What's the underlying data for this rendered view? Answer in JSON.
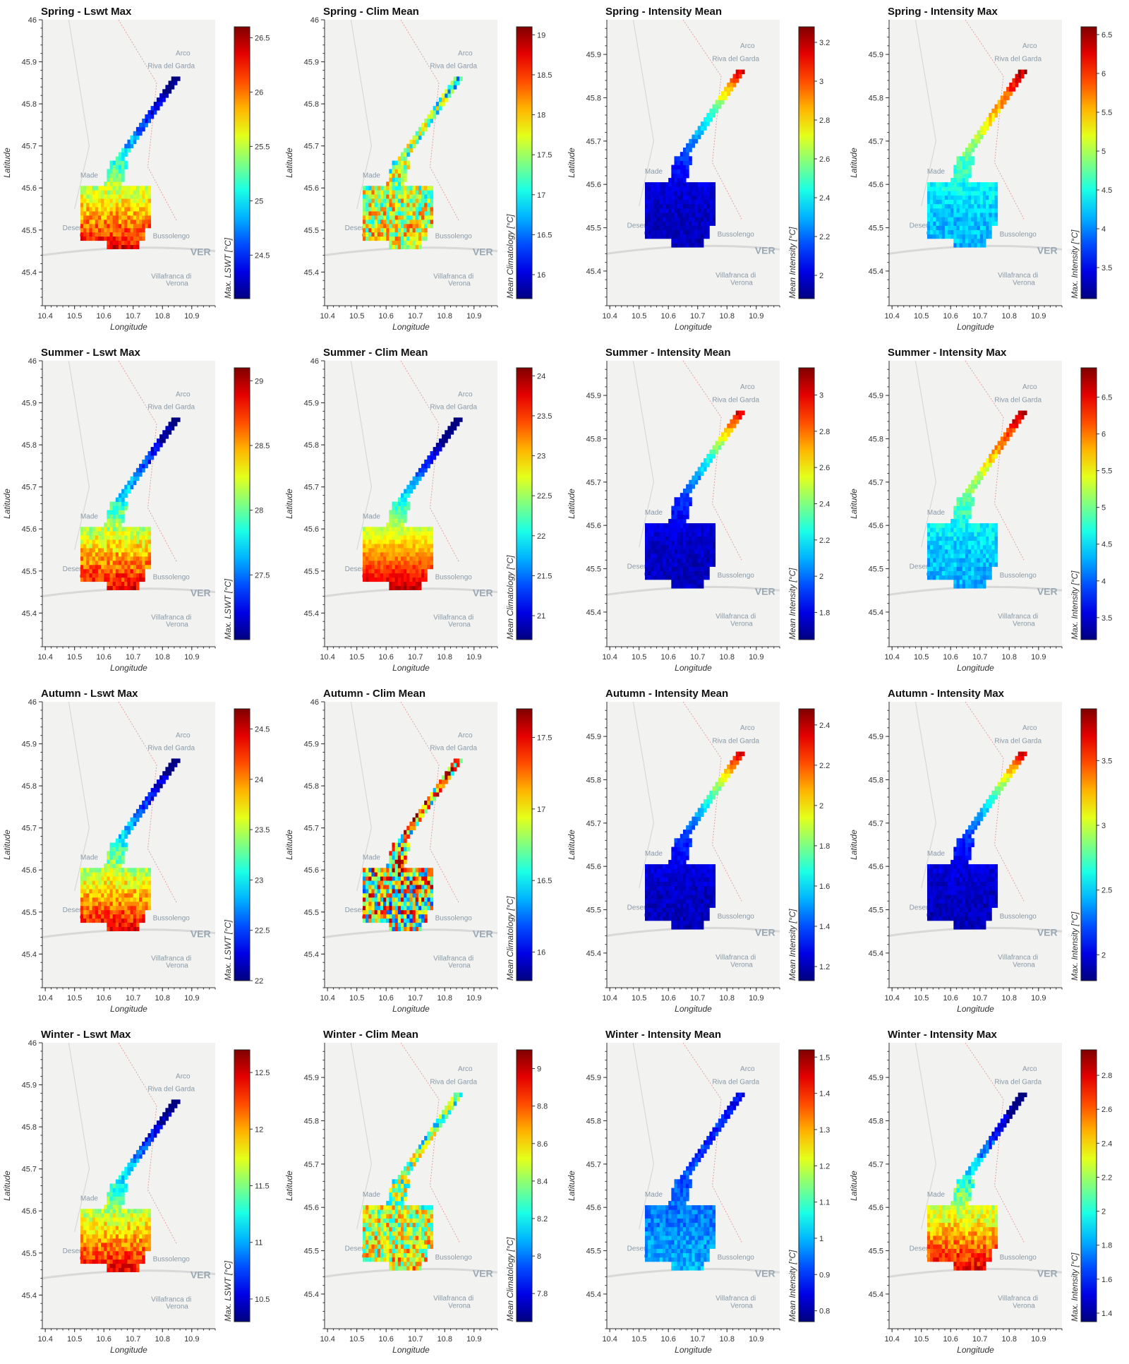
{
  "chart_data": [
    {
      "type": "heatmap",
      "title": "Spring - Lswt Max",
      "xlabel": "Longitude",
      "ylabel": "Latitude",
      "colorbar_label": "Max. LSWT [°C]",
      "colorbar_ticks": [
        "24.5",
        "25",
        "25.5",
        "26",
        "26.5"
      ],
      "clim": [
        24.1,
        26.6
      ],
      "pattern": "south-hot",
      "xticks": [
        "10.4",
        "10.5",
        "10.6",
        "10.7",
        "10.8",
        "10.9"
      ],
      "yticks": [
        "45.4",
        "45.5",
        "45.6",
        "45.7",
        "45.8",
        "45.9",
        "46"
      ],
      "xlim": [
        10.39,
        10.98
      ],
      "ylim": [
        45.32,
        46.0
      ]
    },
    {
      "type": "heatmap",
      "title": "Spring - Clim Mean",
      "xlabel": "Longitude",
      "ylabel": "Latitude",
      "colorbar_label": "Mean Climatology [°C]",
      "colorbar_ticks": [
        "16",
        "16.5",
        "17",
        "17.5",
        "18",
        "18.5",
        "19"
      ],
      "clim": [
        15.7,
        19.1
      ],
      "pattern": "noisy-mid",
      "xticks": [
        "10.4",
        "10.5",
        "10.6",
        "10.7",
        "10.8",
        "10.9"
      ],
      "yticks": [
        "45.4",
        "45.5",
        "45.6",
        "45.7",
        "45.8",
        "45.9",
        "46"
      ],
      "xlim": [
        10.39,
        10.98
      ],
      "ylim": [
        45.32,
        46.0
      ]
    },
    {
      "type": "heatmap",
      "title": "Spring - Intensity Mean",
      "xlabel": "Longitude",
      "ylabel": "Latitude",
      "colorbar_label": "Mean Intensity [°C]",
      "colorbar_ticks": [
        "2",
        "2.2",
        "2.4",
        "2.6",
        "2.8",
        "3",
        "3.2"
      ],
      "clim": [
        1.88,
        3.28
      ],
      "pattern": "north-hot",
      "xticks": [
        "10.4",
        "10.5",
        "10.6",
        "10.7",
        "10.8",
        "10.9"
      ],
      "yticks": [
        "45.4",
        "45.5",
        "45.6",
        "45.7",
        "45.8",
        "45.9"
      ],
      "xlim": [
        10.39,
        10.98
      ],
      "ylim": [
        45.32,
        45.98
      ]
    },
    {
      "type": "heatmap",
      "title": "Spring - Intensity Max",
      "xlabel": "Longitude",
      "ylabel": "Latitude",
      "colorbar_label": "Max. Intensity [°C]",
      "colorbar_ticks": [
        "3.5",
        "4",
        "4.5",
        "5",
        "5.5",
        "6",
        "6.5"
      ],
      "clim": [
        3.1,
        6.6
      ],
      "pattern": "north-hot-soft",
      "xticks": [
        "10.4",
        "10.5",
        "10.6",
        "10.7",
        "10.8",
        "10.9"
      ],
      "yticks": [
        "45.4",
        "45.5",
        "45.6",
        "45.7",
        "45.8",
        "45.9"
      ],
      "xlim": [
        10.39,
        10.98
      ],
      "ylim": [
        45.32,
        45.98
      ]
    },
    {
      "type": "heatmap",
      "title": "Summer - Lswt Max",
      "xlabel": "Longitude",
      "ylabel": "Latitude",
      "colorbar_label": "Max. LSWT [°C]",
      "colorbar_ticks": [
        "27.5",
        "28",
        "28.5",
        "29"
      ],
      "clim": [
        27.0,
        29.1
      ],
      "pattern": "south-hot",
      "xticks": [
        "10.4",
        "10.5",
        "10.6",
        "10.7",
        "10.8",
        "10.9"
      ],
      "yticks": [
        "45.4",
        "45.5",
        "45.6",
        "45.7",
        "45.8",
        "45.9",
        "46"
      ],
      "xlim": [
        10.39,
        10.98
      ],
      "ylim": [
        45.32,
        46.0
      ]
    },
    {
      "type": "heatmap",
      "title": "Summer - Clim Mean",
      "xlabel": "Longitude",
      "ylabel": "Latitude",
      "colorbar_label": "Mean Climatology [°C]",
      "colorbar_ticks": [
        "21",
        "21.5",
        "22",
        "22.5",
        "23",
        "23.5",
        "24"
      ],
      "clim": [
        20.7,
        24.1
      ],
      "pattern": "south-hot-strong",
      "xticks": [
        "10.4",
        "10.5",
        "10.6",
        "10.7",
        "10.8",
        "10.9"
      ],
      "yticks": [
        "45.4",
        "45.5",
        "45.6",
        "45.7",
        "45.8",
        "45.9",
        "46"
      ],
      "xlim": [
        10.39,
        10.98
      ],
      "ylim": [
        45.32,
        46.0
      ]
    },
    {
      "type": "heatmap",
      "title": "Summer - Intensity Mean",
      "xlabel": "Longitude",
      "ylabel": "Latitude",
      "colorbar_label": "Mean Intensity [°C]",
      "colorbar_ticks": [
        "1.8",
        "2",
        "2.2",
        "2.4",
        "2.6",
        "2.8",
        "3"
      ],
      "clim": [
        1.65,
        3.15
      ],
      "pattern": "north-hot",
      "xticks": [
        "10.4",
        "10.5",
        "10.6",
        "10.7",
        "10.8",
        "10.9"
      ],
      "yticks": [
        "45.4",
        "45.5",
        "45.6",
        "45.7",
        "45.8",
        "45.9"
      ],
      "xlim": [
        10.39,
        10.98
      ],
      "ylim": [
        45.32,
        45.98
      ]
    },
    {
      "type": "heatmap",
      "title": "Summer - Intensity Max",
      "xlabel": "Longitude",
      "ylabel": "Latitude",
      "colorbar_label": "Max. Intensity [°C]",
      "colorbar_ticks": [
        "3.5",
        "4",
        "4.5",
        "5",
        "5.5",
        "6",
        "6.5"
      ],
      "clim": [
        3.2,
        6.9
      ],
      "pattern": "north-hot-soft",
      "xticks": [
        "10.4",
        "10.5",
        "10.6",
        "10.7",
        "10.8",
        "10.9"
      ],
      "yticks": [
        "45.4",
        "45.5",
        "45.6",
        "45.7",
        "45.8",
        "45.9"
      ],
      "xlim": [
        10.39,
        10.98
      ],
      "ylim": [
        45.32,
        45.98
      ]
    },
    {
      "type": "heatmap",
      "title": "Autumn - Lswt Max",
      "xlabel": "Longitude",
      "ylabel": "Latitude",
      "colorbar_label": "Max. LSWT [°C]",
      "colorbar_ticks": [
        "22",
        "22.5",
        "23",
        "23.5",
        "24",
        "24.5"
      ],
      "clim": [
        22.0,
        24.7
      ],
      "pattern": "south-hot",
      "xticks": [
        "10.4",
        "10.5",
        "10.6",
        "10.7",
        "10.8",
        "10.9"
      ],
      "yticks": [
        "45.4",
        "45.5",
        "45.6",
        "45.7",
        "45.8",
        "45.9",
        "46"
      ],
      "xlim": [
        10.39,
        10.98
      ],
      "ylim": [
        45.32,
        46.0
      ]
    },
    {
      "type": "heatmap",
      "title": "Autumn - Clim Mean",
      "xlabel": "Longitude",
      "ylabel": "Latitude",
      "colorbar_label": "Mean Climatology [°C]",
      "colorbar_ticks": [
        "16",
        "16.5",
        "17",
        "17.5"
      ],
      "clim": [
        15.8,
        17.7
      ],
      "pattern": "noisy-mixed",
      "xticks": [
        "10.4",
        "10.5",
        "10.6",
        "10.7",
        "10.8",
        "10.9"
      ],
      "yticks": [
        "45.4",
        "45.5",
        "45.6",
        "45.7",
        "45.8",
        "45.9",
        "46"
      ],
      "xlim": [
        10.39,
        10.98
      ],
      "ylim": [
        45.32,
        46.0
      ]
    },
    {
      "type": "heatmap",
      "title": "Autumn - Intensity Mean",
      "xlabel": "Longitude",
      "ylabel": "Latitude",
      "colorbar_label": "Mean Intensity [°C]",
      "colorbar_ticks": [
        "1.2",
        "1.4",
        "1.6",
        "1.8",
        "2",
        "2.2",
        "2.4"
      ],
      "clim": [
        1.13,
        2.48
      ],
      "pattern": "north-hot",
      "xticks": [
        "10.4",
        "10.5",
        "10.6",
        "10.7",
        "10.8",
        "10.9"
      ],
      "yticks": [
        "45.4",
        "45.5",
        "45.6",
        "45.7",
        "45.8",
        "45.9"
      ],
      "xlim": [
        10.39,
        10.98
      ],
      "ylim": [
        45.32,
        45.98
      ]
    },
    {
      "type": "heatmap",
      "title": "Autumn - Intensity Max",
      "xlabel": "Longitude",
      "ylabel": "Latitude",
      "colorbar_label": "Max. Intensity [°C]",
      "colorbar_ticks": [
        "2",
        "2.5",
        "3",
        "3.5"
      ],
      "clim": [
        1.8,
        3.9
      ],
      "pattern": "north-hot",
      "xticks": [
        "10.4",
        "10.5",
        "10.6",
        "10.7",
        "10.8",
        "10.9"
      ],
      "yticks": [
        "45.4",
        "45.5",
        "45.6",
        "45.7",
        "45.8",
        "45.9"
      ],
      "xlim": [
        10.39,
        10.98
      ],
      "ylim": [
        45.32,
        45.98
      ]
    },
    {
      "type": "heatmap",
      "title": "Winter - Lswt Max",
      "xlabel": "Longitude",
      "ylabel": "Latitude",
      "colorbar_label": "Max. LSWT [°C]",
      "colorbar_ticks": [
        "10.5",
        "11",
        "11.5",
        "12",
        "12.5"
      ],
      "clim": [
        10.3,
        12.7
      ],
      "pattern": "south-hot",
      "xticks": [
        "10.4",
        "10.5",
        "10.6",
        "10.7",
        "10.8",
        "10.9"
      ],
      "yticks": [
        "45.4",
        "45.5",
        "45.6",
        "45.7",
        "45.8",
        "45.9",
        "46"
      ],
      "xlim": [
        10.39,
        10.98
      ],
      "ylim": [
        45.32,
        46.0
      ]
    },
    {
      "type": "heatmap",
      "title": "Winter - Clim Mean",
      "xlabel": "Longitude",
      "ylabel": "Latitude",
      "colorbar_label": "Mean Climatology [°C]",
      "colorbar_ticks": [
        "7.8",
        "8",
        "8.2",
        "8.4",
        "8.6",
        "8.8",
        "9"
      ],
      "clim": [
        7.65,
        9.1
      ],
      "pattern": "noisy-mid",
      "xticks": [
        "10.4",
        "10.5",
        "10.6",
        "10.7",
        "10.8",
        "10.9"
      ],
      "yticks": [
        "45.4",
        "45.5",
        "45.6",
        "45.7",
        "45.8",
        "45.9"
      ],
      "xlim": [
        10.39,
        10.98
      ],
      "ylim": [
        45.32,
        45.98
      ]
    },
    {
      "type": "heatmap",
      "title": "Winter - Intensity Mean",
      "xlabel": "Longitude",
      "ylabel": "Latitude",
      "colorbar_label": "Mean Intensity [°C]",
      "colorbar_ticks": [
        "0.8",
        "0.9",
        "1",
        "1.1",
        "1.2",
        "1.3",
        "1.4",
        "1.5"
      ],
      "clim": [
        0.77,
        1.52
      ],
      "pattern": "cool-south",
      "xticks": [
        "10.4",
        "10.5",
        "10.6",
        "10.7",
        "10.8",
        "10.9"
      ],
      "yticks": [
        "45.4",
        "45.5",
        "45.6",
        "45.7",
        "45.8",
        "45.9"
      ],
      "xlim": [
        10.39,
        10.98
      ],
      "ylim": [
        45.32,
        45.98
      ]
    },
    {
      "type": "heatmap",
      "title": "Winter - Intensity Max",
      "xlabel": "Longitude",
      "ylabel": "Latitude",
      "colorbar_label": "Max. Intensity [°C]",
      "colorbar_ticks": [
        "1.4",
        "1.6",
        "1.8",
        "2",
        "2.2",
        "2.4",
        "2.6",
        "2.8"
      ],
      "clim": [
        1.35,
        2.95
      ],
      "pattern": "south-hot",
      "xticks": [
        "10.4",
        "10.5",
        "10.6",
        "10.7",
        "10.8",
        "10.9"
      ],
      "yticks": [
        "45.4",
        "45.5",
        "45.6",
        "45.7",
        "45.8",
        "45.9"
      ],
      "xlim": [
        10.39,
        10.98
      ],
      "ylim": [
        45.32,
        45.98
      ]
    }
  ],
  "map_labels": {
    "arco": "Arco",
    "riva": "Riva del Garda",
    "made": "Made",
    "desenzano": "Desenzano",
    "garda": "Garda",
    "bussolengo": "Bussolengo",
    "ver": "VER",
    "villafranca": "Villafranca di",
    "verona": "Verona"
  },
  "colors": {
    "background": "#ffffff",
    "map_land": "#f2f2f0",
    "map_road": "#d8d8d8",
    "map_border": "#e4a0a0"
  }
}
